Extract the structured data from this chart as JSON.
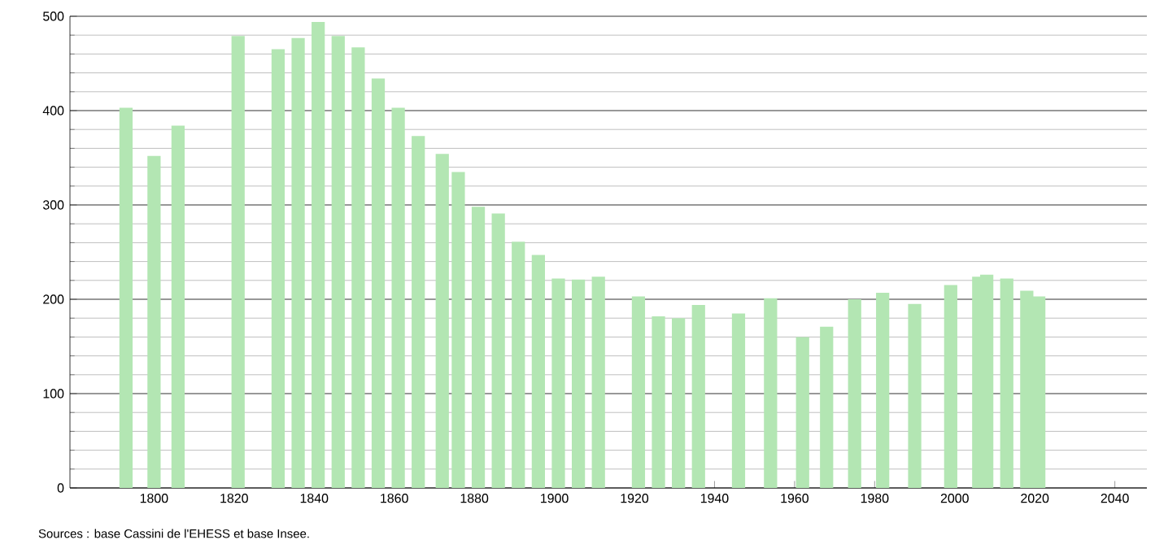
{
  "chart_data": {
    "type": "bar",
    "x": [
      1793,
      1800,
      1806,
      1821,
      1831,
      1836,
      1841,
      1846,
      1851,
      1856,
      1861,
      1866,
      1872,
      1876,
      1881,
      1886,
      1891,
      1896,
      1901,
      1906,
      1911,
      1921,
      1926,
      1931,
      1936,
      1946,
      1954,
      1962,
      1968,
      1975,
      1982,
      1990,
      1999,
      2006,
      2008,
      2013,
      2018,
      2021
    ],
    "values": [
      403,
      352,
      384,
      479,
      465,
      477,
      494,
      479,
      467,
      434,
      403,
      373,
      354,
      335,
      298,
      291,
      261,
      247,
      222,
      221,
      224,
      203,
      182,
      180,
      194,
      185,
      201,
      160,
      171,
      200,
      207,
      195,
      215,
      224,
      226,
      222,
      209,
      203
    ],
    "color": "#b3e6b3",
    "xlim": [
      1779,
      2048
    ],
    "xticks": [
      1800,
      1820,
      1840,
      1860,
      1880,
      1900,
      1920,
      1940,
      1960,
      1980,
      2000,
      2020,
      2040
    ],
    "ylim": [
      0,
      500
    ],
    "yticks": [
      0,
      100,
      200,
      300,
      400,
      500
    ],
    "grid": "y",
    "annotations": [
      "Sources : base Cassini de l'EHESS et base Insee."
    ]
  }
}
